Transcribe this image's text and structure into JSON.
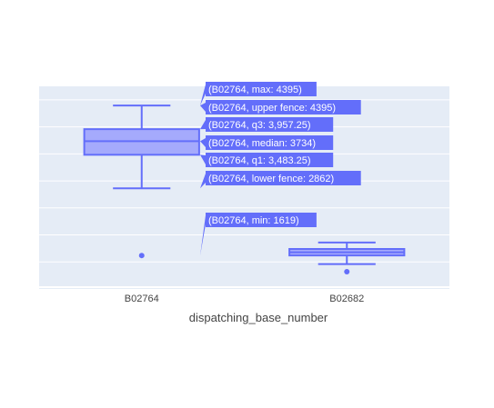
{
  "colors": {
    "plot_bg": "#e5ecf6",
    "grid": "#ffffff",
    "box_line": "#636efa",
    "box_fill": "#a5aafc",
    "hover_bg": "#636efa",
    "hover_text": "#ffffff"
  },
  "chart_data": {
    "type": "box",
    "title": "",
    "xlabel": "dispatching_base_number",
    "ylabel": "",
    "grid": true,
    "legend": "none",
    "ylim": [
      1000,
      4750
    ],
    "categories": [
      "B02764",
      "B02682"
    ],
    "boxes": [
      {
        "category": "B02764",
        "min": 1619,
        "lower_fence": 2862,
        "q1": 3483.25,
        "median": 3734,
        "q3": 3957.25,
        "upper_fence": 4395,
        "max": 4395,
        "outliers": [
          1619
        ]
      },
      {
        "category": "B02682",
        "min": 1320,
        "lower_fence": 1460,
        "q1": 1620,
        "median": 1680,
        "q3": 1740,
        "upper_fence": 1860,
        "max": 1860,
        "outliers": [
          1320
        ]
      }
    ],
    "hover_labels": [
      "(B02764, max: 4395)",
      "(B02764, upper fence: 4395)",
      "(B02764, q3: 3,957.25)",
      "(B02764, median: 3734)",
      "(B02764, q1: 3,483.25)",
      "(B02764, lower fence: 2862)",
      "(B02764, min: 1619)"
    ]
  }
}
